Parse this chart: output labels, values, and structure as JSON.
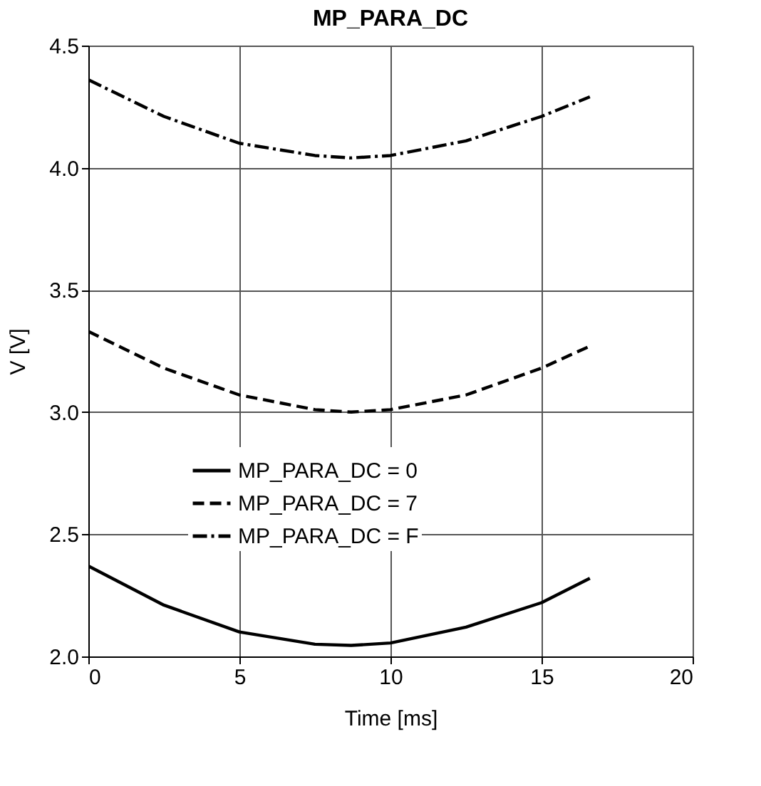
{
  "chart_data": {
    "type": "line",
    "title": "MP_PARA_DC",
    "xlabel": "Time [ms]",
    "ylabel": "V [V]",
    "x": [
      0,
      2.5,
      5,
      7.5,
      8.7,
      10,
      12.5,
      15,
      16.6
    ],
    "series": [
      {
        "name": "MP_PARA_DC = 0",
        "color": "#000000",
        "line_style": "solid",
        "values": [
          2.37,
          2.21,
          2.1,
          2.05,
          2.045,
          2.055,
          2.12,
          2.22,
          2.32
        ]
      },
      {
        "name": "MP_PARA_DC = 7",
        "color": "#000000",
        "line_style": "dashed",
        "values": [
          3.33,
          3.18,
          3.07,
          3.01,
          3.0,
          3.01,
          3.07,
          3.18,
          3.27
        ]
      },
      {
        "name": "MP_PARA_DC = F",
        "color": "#000000",
        "line_style": "dashdot",
        "values": [
          4.36,
          4.21,
          4.1,
          4.05,
          4.04,
          4.05,
          4.11,
          4.21,
          4.29
        ]
      }
    ],
    "xlim": [
      0,
      20
    ],
    "xticks": [
      0,
      5,
      10,
      15,
      20
    ],
    "ylim": [
      2.0,
      4.5
    ],
    "yticks": [
      {
        "value": 2.0,
        "label": "2.0"
      },
      {
        "value": 2.5,
        "label": "2.5"
      },
      {
        "value": 3.0,
        "label": "3.0"
      },
      {
        "value": 3.5,
        "label": "3.5"
      },
      {
        "value": 4.0,
        "label": "4.0"
      },
      {
        "value": 4.5,
        "label": "4.5"
      }
    ],
    "grid": true,
    "legend": "bottom",
    "marker": "none"
  }
}
